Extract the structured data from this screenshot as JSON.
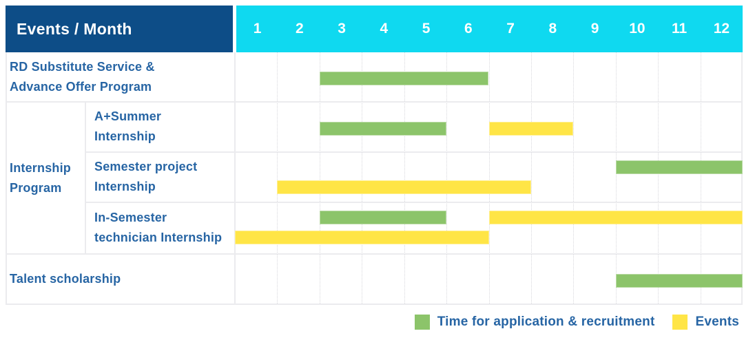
{
  "header": {
    "title": "Events / Month",
    "months": [
      "1",
      "2",
      "3",
      "4",
      "5",
      "6",
      "7",
      "8",
      "9",
      "10",
      "11",
      "12"
    ]
  },
  "group": {
    "label": "Internship\nProgram"
  },
  "rows": [
    {
      "label": "RD Substitute Service &\nAdvance Offer Program"
    },
    {
      "label": "A+Summer\nInternship"
    },
    {
      "label": "Semester project\nInternship"
    },
    {
      "label": "In-Semester\ntechnician Internship"
    },
    {
      "label": "Talent scholarship"
    }
  ],
  "legend": {
    "application": "Time for application & recruitment",
    "events": "Events"
  },
  "colors": {
    "header_bg": "#0d4d87",
    "months_bg": "#0fd9f0",
    "label_text": "#2765a4",
    "green": "#8cc46a",
    "yellow": "#ffe546",
    "grid_line": "#ebebee"
  },
  "chart_data": {
    "type": "table",
    "subtype": "gantt",
    "title": "Events / Month",
    "x_categories": [
      "1",
      "2",
      "3",
      "4",
      "5",
      "6",
      "7",
      "8",
      "9",
      "10",
      "11",
      "12"
    ],
    "x_range": [
      1,
      12
    ],
    "grid": true,
    "legend_position": "bottom-right",
    "legend": [
      {
        "name": "Time for application & recruitment",
        "color": "#8cc46a"
      },
      {
        "name": "Events",
        "color": "#ffe546"
      }
    ],
    "rows": [
      {
        "group": null,
        "label": "RD Substitute Service & Advance Offer Program",
        "bars": [
          {
            "series": "Time for application & recruitment",
            "start_month": 3,
            "end_month": 6,
            "lane": "middle"
          }
        ]
      },
      {
        "group": "Internship Program",
        "label": "A+Summer Internship",
        "bars": [
          {
            "series": "Time for application & recruitment",
            "start_month": 3,
            "end_month": 5,
            "lane": "middle"
          },
          {
            "series": "Events",
            "start_month": 7,
            "end_month": 8,
            "lane": "middle"
          }
        ]
      },
      {
        "group": "Internship Program",
        "label": "Semester project Internship",
        "bars": [
          {
            "series": "Time for application & recruitment",
            "start_month": 10,
            "end_month": 12,
            "lane": "top"
          },
          {
            "series": "Events",
            "start_month": 2,
            "end_month": 7,
            "lane": "bottom"
          }
        ]
      },
      {
        "group": "Internship Program",
        "label": "In-Semester technician Internship",
        "bars": [
          {
            "series": "Time for application & recruitment",
            "start_month": 3,
            "end_month": 5,
            "lane": "top"
          },
          {
            "series": "Events",
            "start_month": 7,
            "end_month": 12,
            "lane": "top"
          },
          {
            "series": "Events",
            "start_month": 1,
            "end_month": 6,
            "lane": "bottom"
          }
        ]
      },
      {
        "group": null,
        "label": "Talent scholarship",
        "bars": [
          {
            "series": "Time for application & recruitment",
            "start_month": 10,
            "end_month": 12,
            "lane": "middle"
          }
        ]
      }
    ]
  }
}
